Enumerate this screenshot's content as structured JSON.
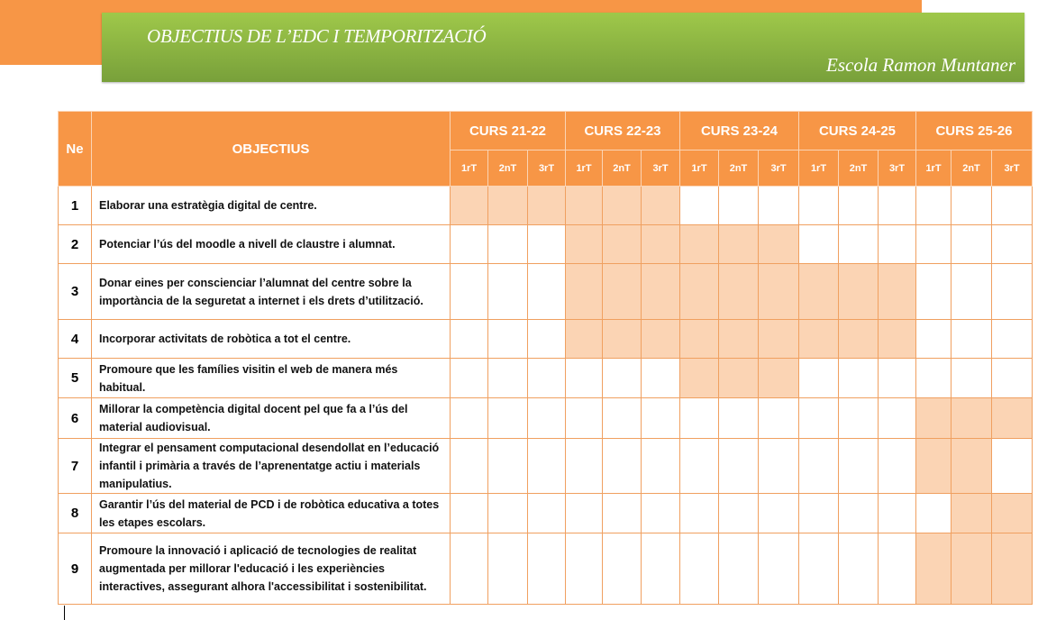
{
  "header": {
    "title": "OBJECTIUS DE L’EDC I TEMPORITZACIÓ",
    "school": "Escola Ramon Muntaner"
  },
  "colors": {
    "accent_orange": "#f79646",
    "shade": "#fbd4b4",
    "banner_green": "#8cb443"
  },
  "table": {
    "col_ne": "Ne",
    "col_objectius": "OBJECTIUS",
    "courses": [
      "CURS 21-22",
      "CURS 22-23",
      "CURS 23-24",
      "CURS 24-25",
      "CURS 25-26"
    ],
    "terms": [
      "1rT",
      "2nT",
      "3rT"
    ],
    "rows": [
      {
        "n": "1",
        "text": "Elaborar una estratègia digital de centre.",
        "active": [
          0,
          1,
          2,
          3,
          4,
          5
        ]
      },
      {
        "n": "2",
        "text": "Potenciar l’ús del moodle a nivell de claustre i alumnat.",
        "active": [
          3,
          4,
          5,
          6,
          7,
          8
        ]
      },
      {
        "n": "3",
        "text": "Donar eines per conscienciar l’alumnat del centre sobre la importància de la seguretat a internet i els drets d’utilització.",
        "active": [
          3,
          4,
          5,
          6,
          7,
          8,
          9,
          10,
          11
        ]
      },
      {
        "n": "4",
        "text": "Incorporar activitats de robòtica a tot el centre.",
        "active": [
          3,
          4,
          5,
          6,
          7,
          8,
          9,
          10,
          11
        ]
      },
      {
        "n": "5",
        "text": "Promoure que les famílies visitin el web de manera més habitual.",
        "active": [
          6,
          7,
          8
        ]
      },
      {
        "n": "6",
        "text": "Millorar la competència digital docent pel que fa a l’ús del material audiovisual.",
        "active": [
          12,
          13,
          14
        ]
      },
      {
        "n": "7",
        "text": "Integrar el pensament computacional desendollat en l’educació infantil i primària a través de l’aprenentatge actiu i materials manipulatius.",
        "active": [
          12,
          13
        ]
      },
      {
        "n": "8",
        "text": "Garantir l’ús del material de PCD i de robòtica educativa a totes les etapes escolars.",
        "active": [
          13,
          14
        ]
      },
      {
        "n": "9",
        "text": "Promoure la innovació i aplicació de tecnologies de realitat augmentada per millorar l'educació i les experiències interactives, assegurant alhora l'accessibilitat i sostenibilitat.",
        "active": [
          12,
          13,
          14
        ]
      }
    ]
  }
}
